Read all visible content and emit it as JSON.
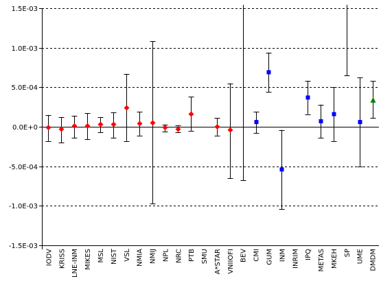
{
  "chart_data": {
    "type": "scatter",
    "title": "",
    "xlabel": "",
    "ylabel": "",
    "ylim": [
      -0.0015,
      0.0015
    ],
    "y_ticks": [
      -0.0015,
      -0.001,
      -0.0005,
      0,
      0.0005,
      0.001,
      0.0015
    ],
    "y_tick_labels": [
      "-1.5E-03",
      "-1.0E-03",
      "-5.0E-04",
      "0.0E+0",
      "5.0E-04",
      "1.0E-03",
      "1.5E-03"
    ],
    "grid": "dashed horizontal",
    "categories": [
      "IODV",
      "KRISS",
      "LNE-INM",
      "MIKES",
      "MSL",
      "NIST",
      "VSL",
      "NMIA",
      "NMIJ",
      "NPL",
      "NRC",
      "PTB",
      "SMU",
      "A*STAR",
      "VNIIOFI",
      "BEV",
      "CMI",
      "GUM",
      "INM",
      "INRIM",
      "IPQ",
      "METAS",
      "MKEH",
      "SP",
      "UME",
      "DMDM"
    ],
    "series": [
      {
        "marker": "diamond",
        "color": "#ff0000",
        "points": [
          {
            "category": "IODV",
            "y": -1e-05,
            "low": -0.00018,
            "high": 0.00015
          },
          {
            "category": "KRISS",
            "y": -3e-05,
            "low": -0.0002,
            "high": 0.00012
          },
          {
            "category": "LNE-INM",
            "y": 1e-05,
            "low": -0.00014,
            "high": 0.00014
          },
          {
            "category": "MIKES",
            "y": 1e-05,
            "low": -0.00016,
            "high": 0.00017
          },
          {
            "category": "MSL",
            "y": 3e-05,
            "low": -7e-05,
            "high": 0.00012
          },
          {
            "category": "NIST",
            "y": 3e-05,
            "low": -0.00014,
            "high": 0.00018
          },
          {
            "category": "VSL",
            "y": 0.00024,
            "low": -0.00018,
            "high": 0.00067
          },
          {
            "category": "NMIA",
            "y": 4e-05,
            "low": -0.00011,
            "high": 0.00019
          },
          {
            "category": "NMIJ",
            "y": 5e-05,
            "low": -0.00097,
            "high": 0.00108
          },
          {
            "category": "NPL",
            "y": -1e-05,
            "low": -6e-05,
            "high": 3e-05
          },
          {
            "category": "NRC",
            "y": -3e-05,
            "low": -7e-05,
            "high": 2e-05
          },
          {
            "category": "PTB",
            "y": 0.00016,
            "low": -5e-05,
            "high": 0.00038
          },
          {
            "category": "A*STAR",
            "y": 0.0,
            "low": -0.00011,
            "high": 0.00011
          },
          {
            "category": "VNIIOFI",
            "y": -4e-05,
            "low": -0.00065,
            "high": 0.00055
          }
        ]
      },
      {
        "marker": "square",
        "color": "#0000ff",
        "points": [
          {
            "category": "CMI",
            "y": 6e-05,
            "low": -8e-05,
            "high": 0.00019
          },
          {
            "category": "GUM",
            "y": 0.00069,
            "low": 0.00044,
            "high": 0.00094
          },
          {
            "category": "INM",
            "y": -0.00054,
            "low": -0.00104,
            "high": -4e-05
          },
          {
            "category": "IPQ",
            "y": 0.00037,
            "low": 0.00016,
            "high": 0.00058
          },
          {
            "category": "METAS",
            "y": 7e-05,
            "low": -0.00014,
            "high": 0.00028
          },
          {
            "category": "MKEH",
            "y": 0.00016,
            "low": -0.00018,
            "high": 0.0005
          },
          {
            "category": "UME",
            "y": 6e-05,
            "low": -0.0005,
            "high": 0.00062
          }
        ]
      },
      {
        "marker": "triangle",
        "color": "#008000",
        "points": [
          {
            "category": "DMDM",
            "y": 0.00034,
            "low": 0.00011,
            "high": 0.00058
          }
        ]
      },
      {
        "marker": "none",
        "color": "#000000",
        "points": [
          {
            "category": "BEV",
            "y": null,
            "low": -0.00068,
            "high": 0.00155
          },
          {
            "category": "SP",
            "y": null,
            "low": 0.00065,
            "high": 0.00155
          }
        ]
      }
    ]
  },
  "colors": {
    "axis": "#000000",
    "grid": "#000000",
    "errorbar": "#000000"
  }
}
